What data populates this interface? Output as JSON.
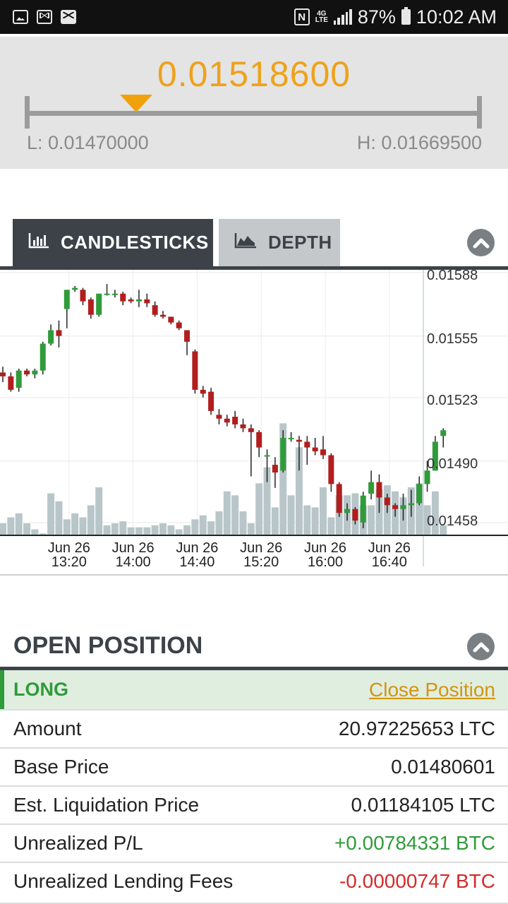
{
  "status_bar": {
    "left_icons": [
      "image-icon",
      "gmail-icon",
      "mail-icon"
    ],
    "nfc_label": "N",
    "network_label": "4G LTE",
    "battery": "87%",
    "time": "10:02 AM"
  },
  "ticker": {
    "price": "0.01518600",
    "low_label": "L: 0.01470000",
    "high_label": "H: 0.01669500",
    "marker_position": 0.24,
    "colors": {
      "price": "#eea21b",
      "marker": "#f0a20c"
    }
  },
  "tabs": [
    {
      "label": "CANDLESTICKS",
      "icon": "bar-chart-icon",
      "active": true
    },
    {
      "label": "DEPTH",
      "icon": "area-chart-icon",
      "active": false
    }
  ],
  "chart_data": {
    "type": "candlestick",
    "y_ticks": [
      "0.01588",
      "0.01555",
      "0.01523",
      "0.01490",
      "0.01458"
    ],
    "y_tick_values": [
      0.01588,
      0.01555,
      0.01523,
      0.0149,
      0.01458
    ],
    "ylim": [
      0.01458,
      0.01588
    ],
    "x_ticks": [
      {
        "date": "Jun 26",
        "time": "13:20",
        "index": 8
      },
      {
        "date": "Jun 26",
        "time": "14:00",
        "index": 16
      },
      {
        "date": "Jun 26",
        "time": "14:40",
        "index": 24
      },
      {
        "date": "Jun 26",
        "time": "15:20",
        "index": 32
      },
      {
        "date": "Jun 26",
        "time": "16:00",
        "index": 40
      },
      {
        "date": "Jun 26",
        "time": "16:40",
        "index": 48
      }
    ],
    "interval_minutes": 5,
    "grid": true,
    "volume_shown": true,
    "up_color": "#2f9b39",
    "down_color": "#b21e1e",
    "volume_color": "#b8c6c9",
    "candles": [
      {
        "o": 0.01539,
        "h": 0.01542,
        "l": 0.01534,
        "c": 0.01537
      },
      {
        "o": 0.01537,
        "h": 0.01539,
        "l": 0.01529,
        "c": 0.0153
      },
      {
        "o": 0.01531,
        "h": 0.01541,
        "l": 0.01529,
        "c": 0.0154
      },
      {
        "o": 0.0154,
        "h": 0.01541,
        "l": 0.01537,
        "c": 0.01538
      },
      {
        "o": 0.01538,
        "h": 0.01541,
        "l": 0.01536,
        "c": 0.0154
      },
      {
        "o": 0.0154,
        "h": 0.01555,
        "l": 0.01538,
        "c": 0.01554
      },
      {
        "o": 0.01554,
        "h": 0.01564,
        "l": 0.01553,
        "c": 0.01561
      },
      {
        "o": 0.01561,
        "h": 0.01566,
        "l": 0.01552,
        "c": 0.01558
      },
      {
        "o": 0.01572,
        "h": 0.01582,
        "l": 0.01562,
        "c": 0.01582
      },
      {
        "o": 0.01582,
        "h": 0.01584,
        "l": 0.01581,
        "c": 0.01583
      },
      {
        "o": 0.01582,
        "h": 0.01583,
        "l": 0.01574,
        "c": 0.01576
      },
      {
        "o": 0.01577,
        "h": 0.01578,
        "l": 0.01567,
        "c": 0.01569
      },
      {
        "o": 0.01569,
        "h": 0.0158,
        "l": 0.01568,
        "c": 0.0158
      },
      {
        "o": 0.0158,
        "h": 0.01585,
        "l": 0.01579,
        "c": 0.0158
      },
      {
        "o": 0.0158,
        "h": 0.01582,
        "l": 0.01578,
        "c": 0.0158
      },
      {
        "o": 0.0158,
        "h": 0.01581,
        "l": 0.01574,
        "c": 0.01576
      },
      {
        "o": 0.01577,
        "h": 0.01578,
        "l": 0.01575,
        "c": 0.01576
      },
      {
        "o": 0.01576,
        "h": 0.01582,
        "l": 0.01573,
        "c": 0.01577
      },
      {
        "o": 0.01577,
        "h": 0.0158,
        "l": 0.01573,
        "c": 0.01575
      },
      {
        "o": 0.01574,
        "h": 0.01576,
        "l": 0.01568,
        "c": 0.01569
      },
      {
        "o": 0.01569,
        "h": 0.01571,
        "l": 0.01567,
        "c": 0.01568
      },
      {
        "o": 0.01568,
        "h": 0.01568,
        "l": 0.01564,
        "c": 0.01565
      },
      {
        "o": 0.01565,
        "h": 0.01566,
        "l": 0.01561,
        "c": 0.01562
      },
      {
        "o": 0.01561,
        "h": 0.01561,
        "l": 0.01548,
        "c": 0.01555
      },
      {
        "o": 0.0155,
        "h": 0.01551,
        "l": 0.01528,
        "c": 0.0153
      },
      {
        "o": 0.0153,
        "h": 0.01532,
        "l": 0.01526,
        "c": 0.01528
      },
      {
        "o": 0.01529,
        "h": 0.01531,
        "l": 0.01517,
        "c": 0.01519
      },
      {
        "o": 0.01517,
        "h": 0.0152,
        "l": 0.01512,
        "c": 0.01515
      },
      {
        "o": 0.01515,
        "h": 0.01517,
        "l": 0.01511,
        "c": 0.01513
      },
      {
        "o": 0.01516,
        "h": 0.01519,
        "l": 0.0151,
        "c": 0.01512
      },
      {
        "o": 0.01512,
        "h": 0.01515,
        "l": 0.01508,
        "c": 0.0151
      },
      {
        "o": 0.0151,
        "h": 0.01512,
        "l": 0.01485,
        "c": 0.01508
      },
      {
        "o": 0.01508,
        "h": 0.01509,
        "l": 0.01495,
        "c": 0.015
      },
      {
        "o": 0.01496,
        "h": 0.01499,
        "l": 0.01482,
        "c": 0.01496
      },
      {
        "o": 0.01491,
        "h": 0.01495,
        "l": 0.01479,
        "c": 0.01487
      },
      {
        "o": 0.01488,
        "h": 0.01509,
        "l": 0.01487,
        "c": 0.01505
      },
      {
        "o": 0.01505,
        "h": 0.01508,
        "l": 0.01503,
        "c": 0.01505
      },
      {
        "o": 0.01504,
        "h": 0.01506,
        "l": 0.01488,
        "c": 0.01503
      },
      {
        "o": 0.01503,
        "h": 0.01506,
        "l": 0.01491,
        "c": 0.015
      },
      {
        "o": 0.015,
        "h": 0.01505,
        "l": 0.01496,
        "c": 0.01498
      },
      {
        "o": 0.01499,
        "h": 0.01506,
        "l": 0.01494,
        "c": 0.01496
      },
      {
        "o": 0.01496,
        "h": 0.01497,
        "l": 0.01477,
        "c": 0.01481
      },
      {
        "o": 0.01481,
        "h": 0.01482,
        "l": 0.01464,
        "c": 0.01466
      },
      {
        "o": 0.01466,
        "h": 0.01471,
        "l": 0.01462,
        "c": 0.01468
      },
      {
        "o": 0.01468,
        "h": 0.01469,
        "l": 0.0146,
        "c": 0.01462
      },
      {
        "o": 0.01461,
        "h": 0.01477,
        "l": 0.01458,
        "c": 0.01475
      },
      {
        "o": 0.01476,
        "h": 0.01488,
        "l": 0.01473,
        "c": 0.01482
      },
      {
        "o": 0.01482,
        "h": 0.01486,
        "l": 0.01466,
        "c": 0.01474
      },
      {
        "o": 0.01474,
        "h": 0.01476,
        "l": 0.01466,
        "c": 0.0147
      },
      {
        "o": 0.0147,
        "h": 0.01471,
        "l": 0.01464,
        "c": 0.01468
      },
      {
        "o": 0.01468,
        "h": 0.01476,
        "l": 0.01462,
        "c": 0.0147
      },
      {
        "o": 0.0147,
        "h": 0.01478,
        "l": 0.01464,
        "c": 0.01471
      },
      {
        "o": 0.01471,
        "h": 0.01485,
        "l": 0.0147,
        "c": 0.01481
      },
      {
        "o": 0.01481,
        "h": 0.01493,
        "l": 0.01477,
        "c": 0.01488
      },
      {
        "o": 0.01488,
        "h": 0.01506,
        "l": 0.01488,
        "c": 0.01503
      },
      {
        "o": 0.01506,
        "h": 0.0151,
        "l": 0.015,
        "c": 0.01509
      }
    ],
    "volume": [
      6,
      9,
      11,
      6,
      3,
      1,
      21,
      17,
      8,
      11,
      9,
      15,
      24,
      5,
      6,
      7,
      4,
      4,
      4,
      5,
      6,
      5,
      3,
      5,
      8,
      10,
      7,
      12,
      22,
      20,
      12,
      6,
      26,
      34,
      14,
      56,
      20,
      44,
      15,
      14,
      24,
      9,
      20,
      20,
      21,
      15,
      15,
      23,
      25,
      22,
      19,
      24,
      26,
      15,
      22,
      5
    ]
  },
  "open_position": {
    "title": "OPEN POSITION",
    "side": "LONG",
    "close_label": "Close Position",
    "rows": [
      {
        "label": "Amount",
        "value": "20.97225653 LTC",
        "tone": "neutral"
      },
      {
        "label": "Base Price",
        "value": "0.01480601",
        "tone": "neutral"
      },
      {
        "label": "Est. Liquidation Price",
        "value": "0.01184105 LTC",
        "tone": "neutral"
      },
      {
        "label": "Unrealized P/L",
        "value": "+0.00784331 BTC",
        "tone": "positive"
      },
      {
        "label": "Unrealized Lending Fees",
        "value": "-0.00000747 BTC",
        "tone": "negative"
      }
    ]
  }
}
